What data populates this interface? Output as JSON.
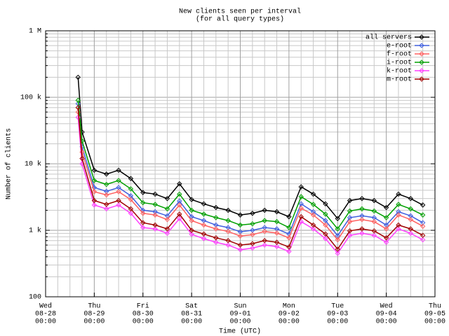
{
  "chart_data": {
    "type": "line",
    "title": "New clients seen per interval",
    "subtitle": "(for all query types)",
    "y_label": "Number of clients",
    "x_label": "Time (UTC)",
    "log_y": true,
    "grid": true,
    "legend": "top-right",
    "ylim": [
      100,
      1000000
    ],
    "yticks": [
      100,
      {
        "value": 1000,
        "label": "1 k"
      },
      {
        "value": 10000,
        "label": "10 k"
      },
      {
        "value": 100000,
        "label": "100 k"
      },
      {
        "value": 1000000,
        "label": "1 M"
      }
    ],
    "xlim": [
      "08-28 00:00",
      "09-05 00:00"
    ],
    "xticks": [
      {
        "value": "08-28 00:00",
        "label": [
          "Wed",
          "08-28",
          "00:00"
        ]
      },
      {
        "value": "08-29 00:00",
        "label": [
          "Thu",
          "08-29",
          "00:00"
        ]
      },
      {
        "value": "08-30 00:00",
        "label": [
          "Fri",
          "08-30",
          "00:00"
        ]
      },
      {
        "value": "08-31 00:00",
        "label": [
          "Sat",
          "08-31",
          "00:00"
        ]
      },
      {
        "value": "09-01 00:00",
        "label": [
          "Sun",
          "09-01",
          "00:00"
        ]
      },
      {
        "value": "09-02 00:00",
        "label": [
          "Mon",
          "09-02",
          "00:00"
        ]
      },
      {
        "value": "09-03 00:00",
        "label": [
          "Tue",
          "09-03",
          "00:00"
        ]
      },
      {
        "value": "09-04 00:00",
        "label": [
          "Wed",
          "09-04",
          "00:00"
        ]
      },
      {
        "value": "09-05 00:00",
        "label": [
          "Thu",
          "09-05",
          "00:00"
        ]
      }
    ],
    "x": [
      "08-28 16:00",
      "08-28 18:00",
      "08-29 00:00",
      "08-29 06:00",
      "08-29 12:00",
      "08-29 18:00",
      "08-30 00:00",
      "08-30 06:00",
      "08-30 12:00",
      "08-30 18:00",
      "08-31 00:00",
      "08-31 06:00",
      "08-31 12:00",
      "08-31 18:00",
      "09-01 00:00",
      "09-01 06:00",
      "09-01 12:00",
      "09-01 18:00",
      "09-02 00:00",
      "09-02 06:00",
      "09-02 12:00",
      "09-02 18:00",
      "09-03 00:00",
      "09-03 06:00",
      "09-03 12:00",
      "09-03 18:00",
      "09-04 00:00",
      "09-04 06:00",
      "09-04 12:00",
      "09-04 18:00"
    ],
    "series": [
      {
        "name": "all servers",
        "color": "#000000",
        "values": [
          200000,
          30000,
          8000,
          7000,
          8000,
          6000,
          3700,
          3500,
          3000,
          5000,
          2900,
          2500,
          2200,
          2000,
          1700,
          1800,
          2000,
          1900,
          1600,
          4500,
          3500,
          2500,
          1500,
          2800,
          3000,
          2800,
          2200,
          3500,
          3000,
          2400
        ]
      },
      {
        "name": "e-root",
        "color": "#4060e0",
        "values": [
          80000,
          18000,
          4400,
          3850,
          4400,
          3300,
          2000,
          1900,
          1650,
          2750,
          1600,
          1400,
          1200,
          1100,
          950,
          1000,
          1100,
          1050,
          880,
          2500,
          1900,
          1400,
          830,
          1550,
          1650,
          1550,
          1200,
          1900,
          1650,
          1300
        ]
      },
      {
        "name": "f-root",
        "color": "#ff6060",
        "values": [
          60000,
          15000,
          3800,
          3400,
          3800,
          2900,
          1800,
          1700,
          1450,
          2400,
          1400,
          1200,
          1050,
          960,
          820,
          860,
          960,
          910,
          770,
          2150,
          1700,
          1200,
          720,
          1350,
          1450,
          1350,
          1050,
          1700,
          1450,
          1150
        ]
      },
      {
        "name": "i-root",
        "color": "#00a000",
        "values": [
          90000,
          22000,
          5600,
          4900,
          5600,
          4200,
          2600,
          2450,
          2100,
          3500,
          2000,
          1750,
          1550,
          1400,
          1200,
          1250,
          1400,
          1350,
          1100,
          3200,
          2450,
          1750,
          1050,
          1950,
          2100,
          1950,
          1550,
          2450,
          2100,
          1700
        ]
      },
      {
        "name": "k-root",
        "color": "#ff40ff",
        "values": [
          50000,
          10000,
          2400,
          2100,
          2400,
          1800,
          1100,
          1050,
          900,
          1500,
          870,
          750,
          660,
          600,
          510,
          540,
          600,
          570,
          480,
          1350,
          1050,
          750,
          450,
          840,
          900,
          840,
          660,
          1050,
          900,
          720
        ]
      },
      {
        "name": "m-root",
        "color": "#a00000",
        "values": [
          70000,
          12000,
          2800,
          2450,
          2800,
          2100,
          1300,
          1200,
          1050,
          1750,
          1000,
          880,
          770,
          700,
          600,
          630,
          700,
          660,
          560,
          1600,
          1200,
          880,
          520,
          980,
          1050,
          980,
          770,
          1200,
          1050,
          840
        ]
      }
    ]
  }
}
